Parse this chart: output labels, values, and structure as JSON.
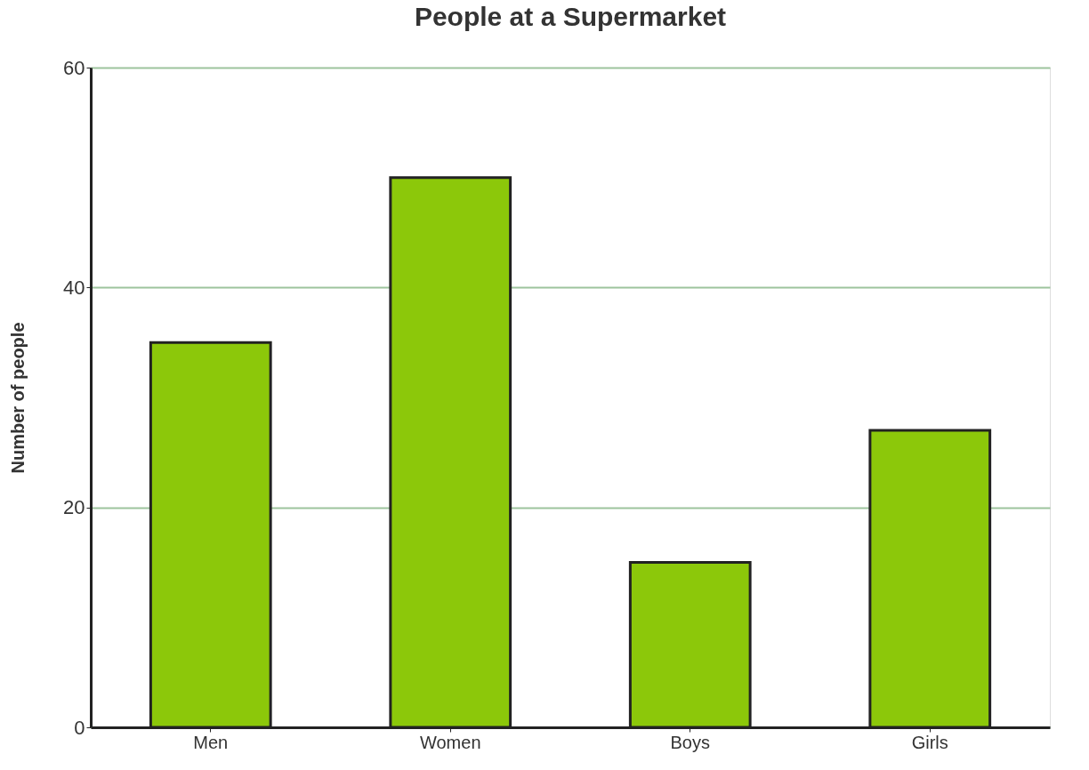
{
  "chart_data": {
    "type": "bar",
    "title": "People at a Supermarket",
    "ylabel": "Number of people",
    "categories": [
      "Men",
      "Women",
      "Boys",
      "Girls"
    ],
    "values": [
      35,
      50,
      15,
      27
    ],
    "color": "#8cc80a",
    "ylim": [
      0,
      60
    ],
    "yticks": [
      0,
      20,
      40,
      60
    ],
    "grid": "y"
  }
}
